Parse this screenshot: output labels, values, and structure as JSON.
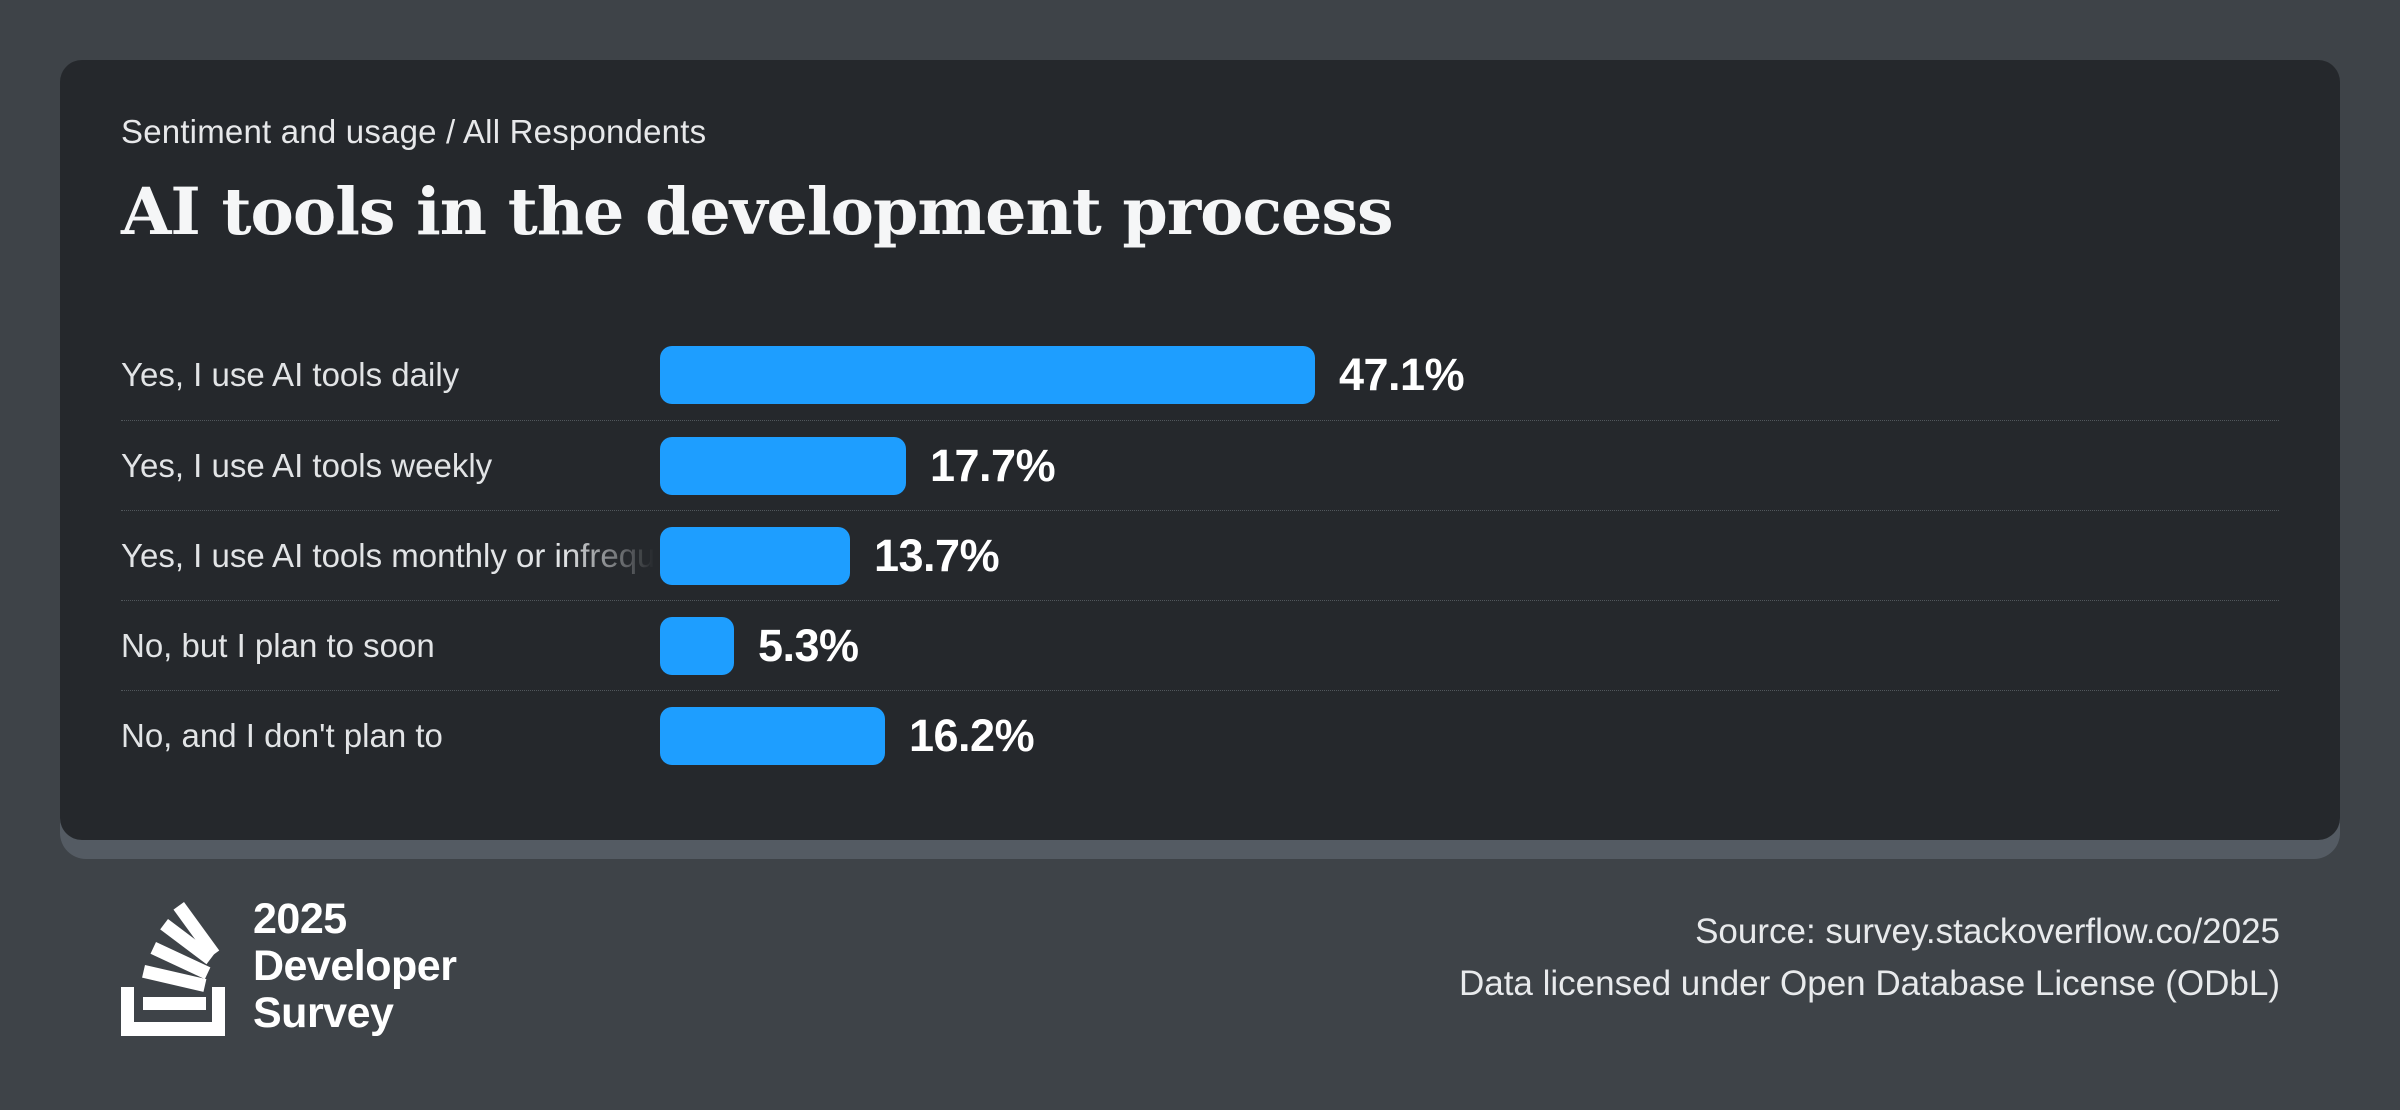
{
  "page": {
    "background_color": "#3e4348",
    "card_color": "#25282c",
    "card_shadow_color": "#545b63",
    "divider_color": "#51575c"
  },
  "header": {
    "breadcrumb": "Sentiment and usage / All Respondents",
    "title": "AI tools in the development process"
  },
  "chart_data": {
    "type": "bar",
    "orientation": "horizontal",
    "title": "AI tools in the development process",
    "subtitle": "Sentiment and usage / All Respondents",
    "categories": [
      "Yes, I use AI tools daily",
      "Yes, I use AI tools weekly",
      "Yes, I use AI tools monthly or infrequently",
      "No, but I plan to soon",
      "No, and I don't plan to"
    ],
    "values": [
      47.1,
      17.7,
      13.7,
      5.3,
      16.2
    ],
    "value_labels": [
      "47.1%",
      "17.7%",
      "13.7%",
      "5.3%",
      "16.2%"
    ],
    "bar_color": "#1e9eff",
    "xlim": [
      0,
      100
    ],
    "grid": false,
    "legend": "none",
    "value_label_position": "right-of-bar",
    "axis_ticks": "none"
  },
  "footer": {
    "logo": {
      "icon": "stackoverflow-survey-logo",
      "line1": "2025",
      "line2": "Developer",
      "line3": "Survey"
    },
    "source_line1": "Source: survey.stackoverflow.co/2025",
    "source_line2": "Data licensed under Open Database License (ODbL)"
  }
}
